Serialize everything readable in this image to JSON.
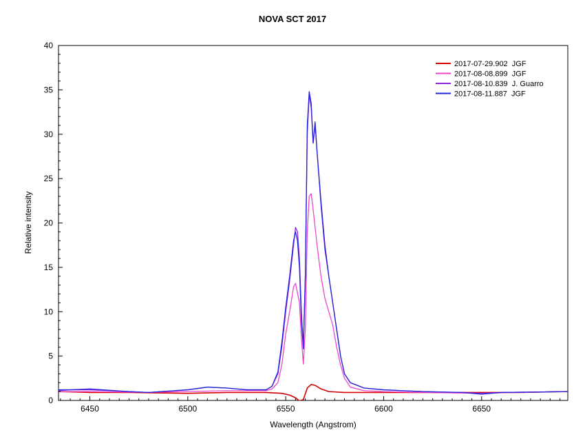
{
  "chart_data": {
    "type": "line",
    "title": "NOVA SCT 2017",
    "xlabel": "Wavelength (Angstrom)",
    "ylabel": "Relative intensity",
    "xlim": [
      6434,
      6694
    ],
    "ylim": [
      0,
      40
    ],
    "x_ticks": [
      6450,
      6500,
      6550,
      6600,
      6650
    ],
    "y_ticks": [
      0,
      5,
      10,
      15,
      20,
      25,
      30,
      35,
      40
    ],
    "x_tick_labels": [
      "6450",
      "6500",
      "6550",
      "6600",
      "6650"
    ],
    "y_tick_labels": [
      "0",
      "5",
      "10",
      "15",
      "20",
      "25",
      "30",
      "35",
      "40"
    ],
    "grid": false,
    "legend_position": "top-right",
    "series": [
      {
        "name": "2017-07-29.902  JGF",
        "color": "#d40000",
        "points": [
          [
            6434,
            1.0
          ],
          [
            6450,
            0.9
          ],
          [
            6470,
            0.9
          ],
          [
            6500,
            0.8
          ],
          [
            6520,
            0.9
          ],
          [
            6540,
            0.9
          ],
          [
            6548,
            0.8
          ],
          [
            6552,
            0.6
          ],
          [
            6555,
            0.3
          ],
          [
            6557,
            -0.05
          ],
          [
            6559,
            0.1
          ],
          [
            6561,
            1.4
          ],
          [
            6563,
            1.8
          ],
          [
            6565,
            1.7
          ],
          [
            6568,
            1.3
          ],
          [
            6572,
            1.0
          ],
          [
            6580,
            0.9
          ],
          [
            6600,
            0.9
          ],
          [
            6620,
            0.9
          ],
          [
            6650,
            0.9
          ],
          [
            6670,
            0.9
          ],
          [
            6694,
            1.0
          ]
        ]
      },
      {
        "name": "2017-08-08.899  JGF",
        "color": "#ee44cc",
        "points": [
          [
            6434,
            1.0
          ],
          [
            6450,
            1.0
          ],
          [
            6480,
            0.9
          ],
          [
            6500,
            1.0
          ],
          [
            6520,
            1.1
          ],
          [
            6535,
            1.1
          ],
          [
            6540,
            1.1
          ],
          [
            6543,
            1.3
          ],
          [
            6546,
            2.0
          ],
          [
            6548,
            4.0
          ],
          [
            6550,
            7.5
          ],
          [
            6552,
            10.0
          ],
          [
            6554,
            12.8
          ],
          [
            6555,
            13.2
          ],
          [
            6557,
            11.0
          ],
          [
            6558,
            7.0
          ],
          [
            6559,
            4.1
          ],
          [
            6560,
            8.0
          ],
          [
            6561,
            19.0
          ],
          [
            6562,
            23.0
          ],
          [
            6563,
            23.3
          ],
          [
            6564,
            21.5
          ],
          [
            6566,
            17.5
          ],
          [
            6568,
            14.0
          ],
          [
            6570,
            11.5
          ],
          [
            6572,
            10.0
          ],
          [
            6574,
            8.5
          ],
          [
            6576,
            6.0
          ],
          [
            6578,
            4.0
          ],
          [
            6580,
            2.5
          ],
          [
            6583,
            1.5
          ],
          [
            6590,
            1.1
          ],
          [
            6600,
            1.0
          ],
          [
            6620,
            0.9
          ],
          [
            6650,
            0.8
          ],
          [
            6670,
            0.9
          ],
          [
            6694,
            1.0
          ]
        ]
      },
      {
        "name": "2017-08-10.839  J. Guarro",
        "color": "#8822dd",
        "points": [
          [
            6434,
            1.1
          ],
          [
            6440,
            1.2
          ],
          [
            6450,
            1.2
          ],
          [
            6470,
            1.0
          ],
          [
            6480,
            0.9
          ],
          [
            6500,
            1.2
          ],
          [
            6510,
            1.5
          ],
          [
            6520,
            1.4
          ],
          [
            6530,
            1.2
          ],
          [
            6540,
            1.2
          ],
          [
            6543,
            1.6
          ],
          [
            6546,
            3.0
          ],
          [
            6548,
            6.0
          ],
          [
            6550,
            10.0
          ],
          [
            6552,
            13.5
          ],
          [
            6554,
            17.5
          ],
          [
            6555,
            19.5
          ],
          [
            6556,
            19.0
          ],
          [
            6557,
            16.0
          ],
          [
            6558,
            10.0
          ],
          [
            6559,
            6.0
          ],
          [
            6560,
            14.0
          ],
          [
            6561,
            30.0
          ],
          [
            6562,
            34.5
          ],
          [
            6563,
            33.0
          ],
          [
            6564,
            29.0
          ],
          [
            6565,
            31.0
          ],
          [
            6566,
            28.0
          ],
          [
            6568,
            22.0
          ],
          [
            6570,
            17.0
          ],
          [
            6572,
            14.0
          ],
          [
            6574,
            11.0
          ],
          [
            6576,
            8.0
          ],
          [
            6578,
            5.0
          ],
          [
            6580,
            3.0
          ],
          [
            6583,
            2.0
          ],
          [
            6590,
            1.4
          ],
          [
            6600,
            1.2
          ],
          [
            6610,
            1.1
          ],
          [
            6620,
            1.0
          ],
          [
            6640,
            0.9
          ],
          [
            6650,
            0.8
          ],
          [
            6660,
            0.9
          ],
          [
            6694,
            1.0
          ]
        ]
      },
      {
        "name": "2017-08-11.887  JGF",
        "color": "#2222dd",
        "points": [
          [
            6434,
            1.2
          ],
          [
            6440,
            1.2
          ],
          [
            6450,
            1.3
          ],
          [
            6470,
            1.0
          ],
          [
            6480,
            0.9
          ],
          [
            6500,
            1.2
          ],
          [
            6510,
            1.5
          ],
          [
            6520,
            1.4
          ],
          [
            6530,
            1.2
          ],
          [
            6540,
            1.2
          ],
          [
            6543,
            1.6
          ],
          [
            6546,
            3.2
          ],
          [
            6548,
            6.5
          ],
          [
            6550,
            10.5
          ],
          [
            6552,
            14.0
          ],
          [
            6554,
            18.0
          ],
          [
            6555,
            19.0
          ],
          [
            6556,
            18.0
          ],
          [
            6557,
            15.0
          ],
          [
            6558,
            9.0
          ],
          [
            6559,
            5.8
          ],
          [
            6560,
            14.0
          ],
          [
            6561,
            31.0
          ],
          [
            6562,
            34.8
          ],
          [
            6563,
            33.5
          ],
          [
            6564,
            29.0
          ],
          [
            6565,
            31.4
          ],
          [
            6566,
            28.0
          ],
          [
            6568,
            22.5
          ],
          [
            6570,
            17.5
          ],
          [
            6572,
            14.0
          ],
          [
            6574,
            11.0
          ],
          [
            6576,
            8.0
          ],
          [
            6578,
            5.0
          ],
          [
            6580,
            3.0
          ],
          [
            6583,
            2.0
          ],
          [
            6590,
            1.4
          ],
          [
            6600,
            1.2
          ],
          [
            6610,
            1.1
          ],
          [
            6620,
            1.0
          ],
          [
            6640,
            0.9
          ],
          [
            6650,
            0.7
          ],
          [
            6660,
            0.9
          ],
          [
            6694,
            1.0
          ]
        ]
      }
    ]
  }
}
